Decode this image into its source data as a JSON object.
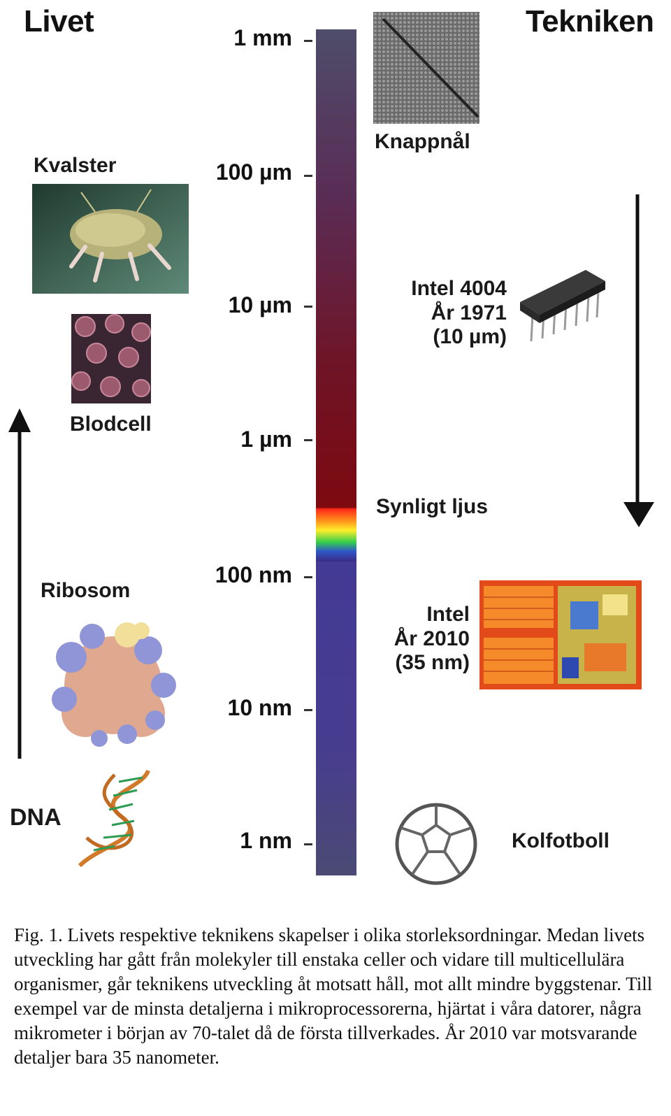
{
  "headers": {
    "left": "Livet",
    "right": "Tekniken"
  },
  "scale": {
    "ticks": [
      "1 mm",
      "100 µm",
      "10 µm",
      "1 µm",
      "100 nm",
      "10 nm",
      "1 nm"
    ]
  },
  "left_items": {
    "mite": "Kvalster",
    "bloodcell": "Blodcell",
    "ribosome": "Ribosom",
    "dna": "DNA"
  },
  "right_items": {
    "pin": "Knappnål",
    "visible_light": "Synligt ljus",
    "intel4004": [
      "Intel 4004",
      "År 1971",
      "(10 µm)"
    ],
    "intel2010": [
      "Intel",
      "År 2010",
      "(35 nm)"
    ],
    "buckyball": "Kolfotboll"
  },
  "caption": "Fig. 1. Livets respektive teknikens skapelser i olika storleksordningar. Medan livets utveckling har gått från molekyler till enstaka celler och vidare till multicellulära organismer, går teknikens utveckling åt motsatt håll, mot allt mindre byggstenar. Till exempel var de minsta detaljerna i mikroprocessorerna, hjärtat i våra datorer, några mikrometer i början av 70-talet då de första tillverkades. År 2010 var motsvarande detaljer bara 35 nanometer.",
  "colors": {
    "scale_top": "#4e4d6a",
    "scale_red": "#7b0a12",
    "scale_blue": "#473d8f"
  }
}
